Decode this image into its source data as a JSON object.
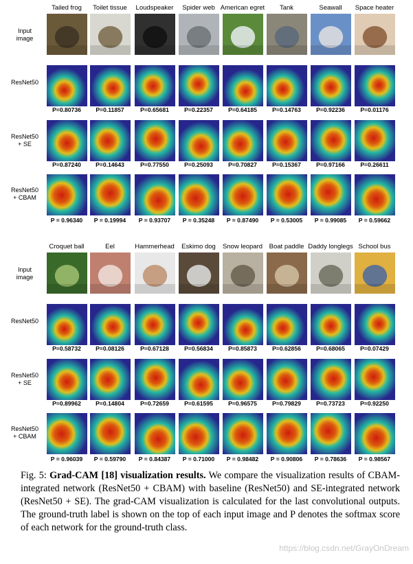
{
  "panel1": {
    "classes": [
      "Tailed frog",
      "Toilet tissue",
      "Loudspeaker",
      "Spider web",
      "American egret",
      "Tank",
      "Seawall",
      "Space heater"
    ],
    "rows": [
      {
        "label": "Input\nimage",
        "type": "input",
        "probs": null
      },
      {
        "label": "ResNet50",
        "type": "cam",
        "probs": [
          "P=0.80736",
          "P=0.11857",
          "P=0.65681",
          "P=0.22357",
          "P=0.64185",
          "P=0.14763",
          "P=0.92236",
          "P=0.01176"
        ]
      },
      {
        "label": "ResNet50\n+ SE",
        "type": "cam",
        "probs": [
          "P=0.87240",
          "P=0.14643",
          "P=0.77550",
          "P=0.25093",
          "P=0.70827",
          "P=0.15367",
          "P=0.97166",
          "P=0.26611"
        ]
      },
      {
        "label": "ResNet50\n+ CBAM",
        "type": "cam",
        "probs": [
          "P = 0.96340",
          "P = 0.19994",
          "P = 0.93707",
          "P = 0.35248",
          "P = 0.87490",
          "P = 0.53005",
          "P = 0.99085",
          "P = 0.59662"
        ]
      }
    ]
  },
  "panel2": {
    "classes": [
      "Croquet ball",
      "Eel",
      "Hammerhead",
      "Eskimo dog",
      "Snow leopard",
      "Boat paddle",
      "Daddy longlegs",
      "School bus"
    ],
    "rows": [
      {
        "label": "Input\nimage",
        "type": "input",
        "probs": null
      },
      {
        "label": "ResNet50",
        "type": "cam",
        "probs": [
          "P=0.58732",
          "P=0.08126",
          "P=0.67128",
          "P=0.56834",
          "P=0.85873",
          "P=0.62856",
          "P=0.68065",
          "P=0.07429"
        ]
      },
      {
        "label": "ResNet50\n+ SE",
        "type": "cam",
        "probs": [
          "P=0.89962",
          "P=0.14804",
          "P=0.72659",
          "P=0.61595",
          "P=0.96575",
          "P=0.79829",
          "P=0.73723",
          "P=0.92250"
        ]
      },
      {
        "label": "ResNet50\n+ CBAM",
        "type": "cam",
        "probs": [
          "P = 0.96039",
          "P = 0.59790",
          "P = 0.84387",
          "P = 0.71000",
          "P = 0.98482",
          "P = 0.90806",
          "P = 0.78636",
          "P = 0.98567"
        ]
      }
    ]
  },
  "caption": {
    "prefix": "Fig. 5: ",
    "bold": "Grad-CAM [18] visualization results.",
    "text": " We compare the visualization results of CBAM-integrated network (ResNet50 + CBAM) with baseline (ResNet50) and SE-integrated network (ResNet50 + SE). The grad-CAM visualization is calculated for the last convolutional outputs. The ground-truth label is shown on the top of each input image and P denotes the softmax score of each network for the ground-truth class."
  },
  "watermark": "https://blog.csdn.net/GrayOnDream",
  "colors": {
    "cam_low": "#2a2a9a",
    "cam_mid": "#28c8b0",
    "cam_high_warm": "#f4d020",
    "cam_peak": "#e02010"
  }
}
